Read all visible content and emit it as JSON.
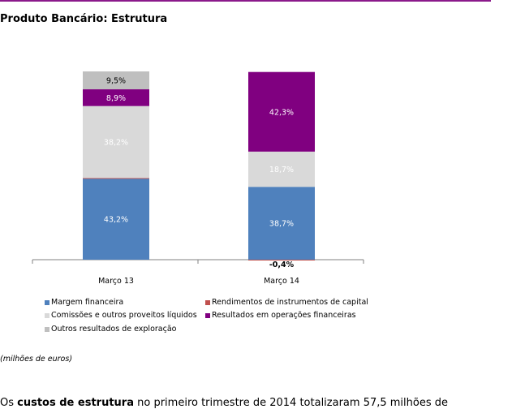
{
  "page": {
    "title": "Produto Bancário: Estrutura",
    "unit_note": "(milhões de euros)",
    "body_prefix": "Os ",
    "body_bold": "custos de estrutura",
    "body_rest": " no primeiro trimestre de 2014 totalizaram 57,5 milhões de"
  },
  "colors": {
    "rule": "#8b1a8b",
    "margem": "#4f81bd",
    "rendimentos": "#c0504d",
    "comissoes": "#d9d9d9",
    "resultados": "#800080",
    "outros": "#bfbfbf"
  },
  "chart_data": {
    "type": "bar",
    "stacked": true,
    "categories": [
      "Março 13",
      "Março 14"
    ],
    "series": [
      {
        "name": "Margem financeira",
        "color": "#4f81bd",
        "values": [
          43.2,
          38.7
        ],
        "labels": [
          "43,2%",
          "38,7%"
        ]
      },
      {
        "name": "Rendimentos de instrumentos de capital",
        "color": "#c0504d",
        "values": [
          0.2,
          -0.4
        ],
        "labels": [
          "",
          "-0,4%"
        ]
      },
      {
        "name": "Comissões e outros proveitos líquidos",
        "color": "#d9d9d9",
        "values": [
          38.2,
          18.7
        ],
        "labels": [
          "38,2%",
          "18,7%"
        ]
      },
      {
        "name": "Resultados em operações financeiras",
        "color": "#800080",
        "values": [
          8.9,
          42.3
        ],
        "labels": [
          "8,9%",
          "42,3%"
        ]
      },
      {
        "name": "Outros resultados de exploração",
        "color": "#bfbfbf",
        "values": [
          9.5,
          0
        ],
        "labels": [
          "9,5%",
          ""
        ]
      }
    ],
    "ylim": [
      0,
      100
    ],
    "legend": "bottom"
  }
}
